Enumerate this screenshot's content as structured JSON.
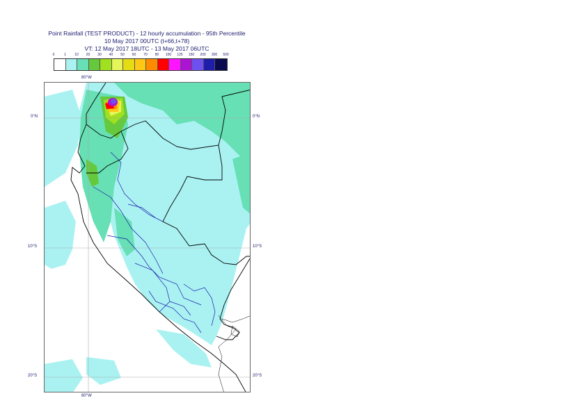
{
  "title": {
    "line1": "Point Rainfall (TEST PRODUCT) - 12 hourly accumulation - 95th Percentile",
    "line2": "10 May 2017 00UTC (t+66,t+78)",
    "line3": "VT: 12 May 2017 18UTC - 13 May 2017 06UTC"
  },
  "legend": {
    "thresholds": [
      "0",
      "1",
      "10",
      "20",
      "30",
      "40",
      "50",
      "60",
      "70",
      "80",
      "100",
      "125",
      "150",
      "200",
      "300",
      "500"
    ],
    "colors": [
      "#ffffff",
      "#aaf2f2",
      "#66e0b4",
      "#66c83c",
      "#a0e01e",
      "#e6f55a",
      "#e6dc14",
      "#ffc814",
      "#ff8c00",
      "#ff0000",
      "#ff14ff",
      "#aa14d2",
      "#6e50f0",
      "#1e1eaa",
      "#0a0a50"
    ]
  },
  "map": {
    "lon_labels": {
      "top": "80°W",
      "bottom": "80°W"
    },
    "lat_labels": [
      {
        "left": "0°N",
        "right": "0°N"
      },
      {
        "left": "10°S",
        "right": "10°S"
      },
      {
        "left": "20°S",
        "right": "20°S"
      }
    ]
  }
}
